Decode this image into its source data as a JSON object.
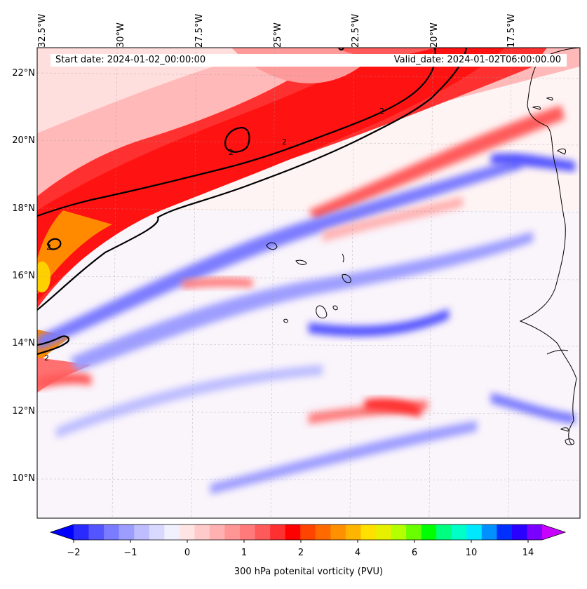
{
  "map": {
    "start_date": "Start date: 2024-01-02_00:00:00",
    "valid_date": "Valid_date: 2024-01-02T06:00:00.00",
    "longitude_labels": [
      "32.5°W",
      "30°W",
      "27.5°W",
      "25°W",
      "22.5°W",
      "20°W",
      "17.5°W"
    ],
    "latitude_labels": [
      "22°N",
      "20°N",
      "18°N",
      "16°N",
      "14°N",
      "12°N",
      "10°N"
    ],
    "contour_labels": [
      "2",
      "2",
      "2",
      "2",
      "2"
    ],
    "extent": {
      "lon_west": -32.5,
      "lon_east": -15.3,
      "lat_south": 8.9,
      "lat_north": 22.8
    }
  },
  "colorbar": {
    "label": "300 hPa potenital vorticity (PVU)",
    "tick_labels": [
      "−2",
      "−1",
      "0",
      "1",
      "2",
      "4",
      "6",
      "10",
      "14"
    ],
    "colors": [
      "#0000ff",
      "#2a2aff",
      "#5555ff",
      "#7b7bff",
      "#9d9dff",
      "#bdbdff",
      "#d9d9ff",
      "#f0f0ff",
      "#ffe4e4",
      "#ffcaca",
      "#ffb0b0",
      "#ff9595",
      "#ff7a7a",
      "#ff5a5a",
      "#ff3030",
      "#ff0000",
      "#ff4400",
      "#ff6a00",
      "#ff9000",
      "#ffb400",
      "#ffe000",
      "#e6f000",
      "#b4ff00",
      "#6aff00",
      "#00ff00",
      "#00ff80",
      "#00ffc8",
      "#00e8ff",
      "#0090ff",
      "#0030ff",
      "#2a00ff",
      "#7a00ff",
      "#c800ff"
    ]
  }
}
